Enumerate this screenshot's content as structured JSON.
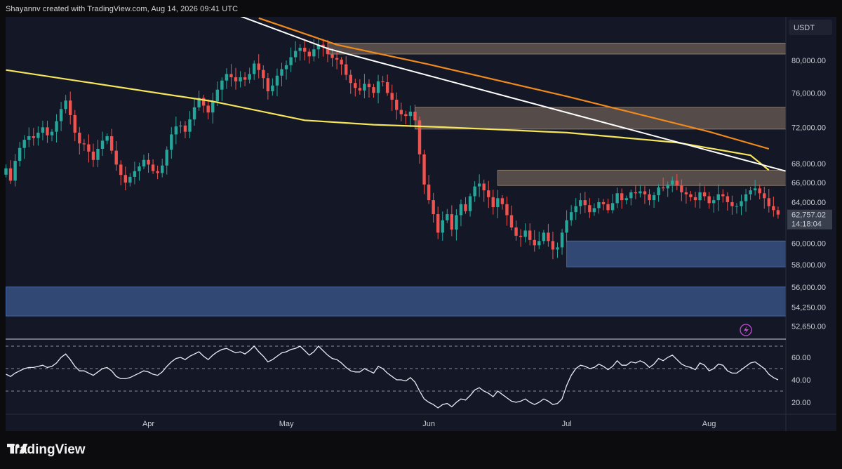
{
  "header": {
    "attribution": "Shayannv created with TradingView.com, Aug 14, 2026 09:41 UTC"
  },
  "brand": {
    "name": "TradingView"
  },
  "colors": {
    "up": "#26a69a",
    "down": "#ef5350",
    "ma_yellow": "#f7e55a",
    "ma_orange": "#f18a1c",
    "trendline": "#ffffff",
    "supply_zone": "#8b7766",
    "demand_zone": "#3d5d95",
    "rsi_line": "#e6ecf5",
    "background": "#141826"
  },
  "chart_data": [
    {
      "type": "candlestick",
      "title": "",
      "currency_label": "USDT",
      "y_scale": "log",
      "y_ticks": [
        {
          "value": 80000,
          "label": "80,000.00"
        },
        {
          "value": 76000,
          "label": "76,000.00"
        },
        {
          "value": 72000,
          "label": "72,000.00"
        },
        {
          "value": 68000,
          "label": "68,000.00"
        },
        {
          "value": 66000,
          "label": "66,000.00"
        },
        {
          "value": 64000,
          "label": "64,000.00"
        },
        {
          "value": 60000,
          "label": "60,000.00"
        },
        {
          "value": 58000,
          "label": "58,000.00"
        },
        {
          "value": 56000,
          "label": "56,000.00"
        },
        {
          "value": 54250,
          "label": "54,250.00"
        },
        {
          "value": 52650,
          "label": "52,650.00"
        }
      ],
      "x_ticks": [
        {
          "date": "2026-04-01",
          "label": "Apr"
        },
        {
          "date": "2026-05-01",
          "label": "May"
        },
        {
          "date": "2026-06-01",
          "label": "Jun"
        },
        {
          "date": "2026-07-01",
          "label": "Jul"
        },
        {
          "date": "2026-08-01",
          "label": "Aug"
        }
      ],
      "current_price": {
        "value": 62757.02,
        "label": "62,757.02",
        "countdown": "14:18:04"
      },
      "close_series": {
        "start_date": "2026-03-01",
        "step_days": 1,
        "closes": [
          67500,
          66200,
          68300,
          69700,
          70600,
          71000,
          70800,
          71400,
          72000,
          71100,
          71500,
          72700,
          74100,
          75100,
          73400,
          71400,
          70200,
          70100,
          69300,
          68400,
          69600,
          70500,
          71000,
          69400,
          67900,
          66800,
          66000,
          66600,
          67200,
          67700,
          68400,
          67900,
          67200,
          67000,
          67800,
          69500,
          71200,
          72100,
          72200,
          71500,
          72900,
          74300,
          75400,
          74500,
          73700,
          75000,
          76400,
          77500,
          78300,
          77900,
          77400,
          77900,
          77600,
          78300,
          79600,
          78800,
          77800,
          76200,
          76900,
          78100,
          78900,
          79400,
          80400,
          81200,
          81600,
          81100,
          80500,
          81400,
          82000,
          81700,
          80800,
          80300,
          80100,
          79500,
          78200,
          77200,
          76600,
          76300,
          77100,
          76700,
          76000,
          77400,
          77300,
          76000,
          75200,
          74000,
          73500,
          73300,
          73800,
          72800,
          69000,
          65800,
          64200,
          62800,
          61000,
          62200,
          62800,
          61300,
          62700,
          63800,
          63100,
          64600,
          65600,
          65900,
          65200,
          64500,
          63500,
          64400,
          63800,
          62700,
          61500,
          60700,
          60600,
          61200,
          60300,
          59800,
          60200,
          61000,
          60200,
          59400,
          59600,
          61000,
          62200,
          63000,
          63600,
          64200,
          63700,
          63000,
          63400,
          64000,
          63800,
          63200,
          63900,
          64900,
          64200,
          64400,
          65000,
          64900,
          65100,
          64800,
          64200,
          64700,
          65500,
          65400,
          65800,
          66200,
          65700,
          65000,
          64800,
          64500,
          64200,
          65000,
          64600,
          63900,
          64200,
          64800,
          64600,
          64000,
          63600,
          63600,
          64100,
          64800,
          65200,
          65400,
          64900,
          64400,
          63600,
          63200,
          62757
        ]
      },
      "moving_averages": [
        {
          "color": "#f7e55a",
          "points": [
            {
              "date": "2026-03-01",
              "value": 78800
            },
            {
              "date": "2026-04-15",
              "value": 75000
            },
            {
              "date": "2026-05-05",
              "value": 72800
            },
            {
              "date": "2026-05-20",
              "value": 72300
            },
            {
              "date": "2026-06-05",
              "value": 72000
            },
            {
              "date": "2026-07-01",
              "value": 71400
            },
            {
              "date": "2026-07-25",
              "value": 70300
            },
            {
              "date": "2026-08-10",
              "value": 68900
            },
            {
              "date": "2026-08-14",
              "value": 67300
            }
          ]
        },
        {
          "color": "#f18a1c",
          "points": [
            {
              "date": "2026-04-25",
              "value": 85500
            },
            {
              "date": "2026-05-12",
              "value": 82000
            },
            {
              "date": "2026-06-01",
              "value": 79500
            },
            {
              "date": "2026-07-01",
              "value": 75600
            },
            {
              "date": "2026-08-01",
              "value": 71500
            },
            {
              "date": "2026-08-14",
              "value": 69600
            }
          ]
        }
      ],
      "trendline": {
        "points": [
          {
            "date": "2026-04-20",
            "value": 86000
          },
          {
            "date": "2026-05-10",
            "value": 81500
          },
          {
            "date": "2026-08-20",
            "value": 66900
          }
        ]
      },
      "zones": [
        {
          "kind": "supply",
          "x0": "2026-05-10",
          "x1": "2026-08-20",
          "y0": 80800,
          "y1": 82200
        },
        {
          "kind": "supply",
          "x0": "2026-05-29",
          "x1": "2026-08-20",
          "y0": 71800,
          "y1": 74300
        },
        {
          "kind": "supply",
          "x0": "2026-06-16",
          "x1": "2026-08-20",
          "y0": 65700,
          "y1": 67300
        },
        {
          "kind": "demand",
          "x0": "2026-07-01",
          "x1": "2026-08-20",
          "y0": 57800,
          "y1": 60200
        },
        {
          "kind": "demand",
          "x0": "2026-03-01",
          "x1": "2026-08-20",
          "y0": 53500,
          "y1": 56000
        }
      ]
    },
    {
      "type": "line",
      "title": "",
      "y_ticks": [
        {
          "value": 60,
          "label": "60.00"
        },
        {
          "value": 40,
          "label": "40.00"
        },
        {
          "value": 20,
          "label": "20.00"
        }
      ],
      "levels": [
        70,
        50,
        30
      ],
      "series": [
        {
          "start_date": "2026-03-01",
          "step_days": 1,
          "values": [
            45,
            43,
            46,
            48,
            50,
            51,
            51,
            52,
            53,
            51,
            52,
            55,
            60,
            63,
            58,
            52,
            48,
            48,
            46,
            44,
            47,
            50,
            51,
            48,
            43,
            41,
            41,
            42,
            44,
            46,
            48,
            47,
            45,
            44,
            47,
            52,
            56,
            59,
            60,
            58,
            61,
            63,
            65,
            61,
            58,
            62,
            65,
            67,
            68,
            66,
            64,
            65,
            63,
            66,
            70,
            65,
            61,
            56,
            58,
            61,
            64,
            65,
            67,
            68,
            70,
            66,
            62,
            65,
            70,
            66,
            62,
            59,
            58,
            55,
            51,
            48,
            47,
            47,
            50,
            48,
            46,
            52,
            50,
            46,
            43,
            40,
            40,
            39,
            42,
            38,
            30,
            23,
            20,
            18,
            15,
            18,
            19,
            16,
            20,
            23,
            22,
            26,
            31,
            33,
            30,
            28,
            25,
            30,
            27,
            24,
            21,
            20,
            21,
            23,
            20,
            18,
            20,
            23,
            21,
            18,
            19,
            23,
            35,
            44,
            50,
            53,
            52,
            50,
            51,
            54,
            52,
            49,
            52,
            57,
            53,
            53,
            56,
            55,
            57,
            55,
            51,
            54,
            59,
            57,
            60,
            62,
            58,
            54,
            52,
            51,
            49,
            55,
            53,
            48,
            50,
            54,
            53,
            48,
            46,
            46,
            49,
            52,
            55,
            56,
            53,
            50,
            45,
            42,
            40
          ]
        }
      ]
    }
  ]
}
